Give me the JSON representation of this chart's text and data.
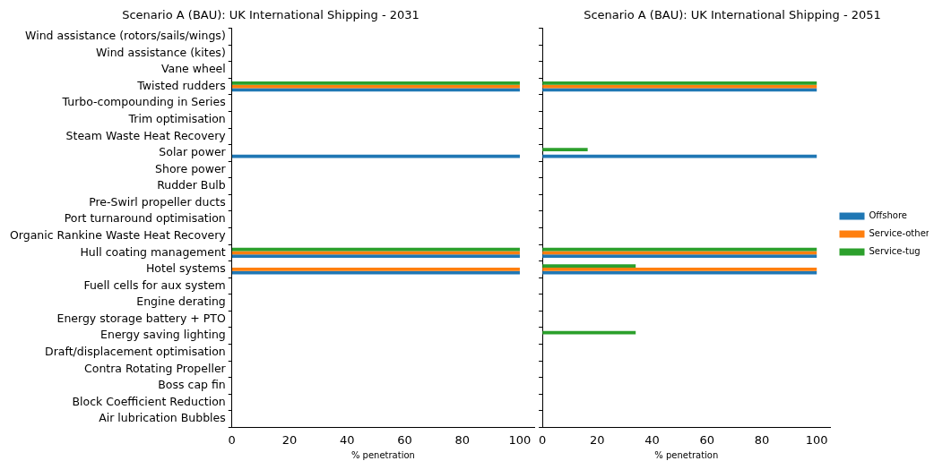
{
  "chart_data": [
    {
      "type": "bar",
      "orientation": "horizontal",
      "title": "Scenario A (BAU): UK International Shipping - 2031",
      "xlabel": "% penetration",
      "categories": [
        "Wind assistance (rotors/sails/wings)",
        "Wind assistance (kites)",
        "Vane wheel",
        "Twisted rudders",
        "Turbo-compounding in Series",
        "Trim optimisation",
        "Steam Waste Heat Recovery",
        "Solar power",
        "Shore power",
        "Rudder Bulb",
        "Pre-Swirl propeller ducts",
        "Port turnaround optimisation",
        "Organic Rankine Waste Heat Recovery",
        "Hull coating management",
        "Hotel systems",
        "Fuell cells for aux system",
        "Engine derating",
        "Energy storage battery + PTO",
        "Energy saving lighting",
        "Draft/displacement optimisation",
        "Contra Rotating Propeller",
        "Boss cap fin",
        "Block Coefficient Reduction",
        "Air lubrication Bubbles"
      ],
      "xlim": [
        0,
        105
      ],
      "xticks": [
        0,
        20,
        40,
        60,
        80,
        100
      ],
      "grid": false,
      "legend": false,
      "series": [
        {
          "color": "#1f77b4",
          "values": [
            0,
            0,
            0,
            100,
            0,
            0,
            0,
            100,
            0,
            0,
            0,
            0,
            0,
            100,
            100,
            0,
            0,
            0,
            0,
            0,
            0,
            0,
            0,
            0
          ]
        },
        {
          "color": "#ff7f0e",
          "values": [
            0,
            0,
            0,
            100,
            0,
            0,
            0,
            0,
            0,
            0,
            0,
            0,
            0,
            100,
            100,
            0,
            0,
            0,
            0,
            0,
            0,
            0,
            0,
            0
          ]
        },
        {
          "color": "#2ca02c",
          "values": [
            0,
            0,
            0,
            100,
            0,
            0,
            0,
            0,
            0,
            0,
            0,
            0,
            0,
            100,
            0,
            0,
            0,
            0,
            0,
            0,
            0,
            0,
            0,
            0
          ]
        }
      ]
    },
    {
      "type": "bar",
      "orientation": "horizontal",
      "title": "Scenario A (BAU): UK International Shipping - 2051",
      "xlabel": "% penetration",
      "xlim": [
        0,
        105
      ],
      "xticks": [
        0,
        20,
        40,
        60,
        80,
        100
      ],
      "grid": false,
      "legend": "right",
      "tick_labels": "x",
      "series": [
        {
          "name": "Offshore",
          "color": "#1f77b4",
          "values": [
            0,
            0,
            0,
            100,
            0,
            0,
            0,
            100,
            0,
            0,
            0,
            0,
            0,
            100,
            100,
            0,
            0,
            0,
            0,
            0,
            0,
            0,
            0,
            0
          ]
        },
        {
          "name": "Service-other",
          "color": "#ff7f0e",
          "values": [
            0,
            0,
            0,
            100,
            0,
            0,
            0,
            0,
            0,
            0,
            0,
            0,
            0,
            100,
            100,
            0,
            0,
            0,
            0,
            0,
            0,
            0,
            0,
            0
          ]
        },
        {
          "name": "Service-tug",
          "color": "#2ca02c",
          "values": [
            0,
            0,
            0,
            100,
            0,
            0,
            0,
            16.5,
            0,
            0,
            0,
            0,
            0,
            100,
            34,
            0,
            0,
            0,
            34,
            0,
            0,
            0,
            0,
            0
          ]
        }
      ]
    }
  ]
}
